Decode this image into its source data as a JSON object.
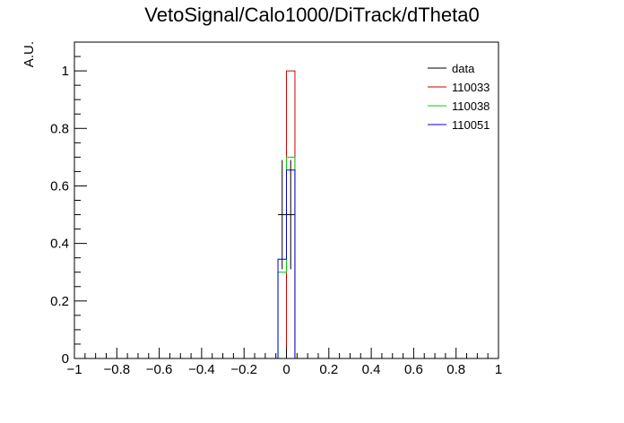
{
  "chart_data": {
    "type": "histogram",
    "title": "VetoSignal/Calo1000/DiTrack/dTheta0",
    "xlabel": "",
    "ylabel": "A.U.",
    "xlim": [
      -1,
      1
    ],
    "ylim": [
      0,
      1.1
    ],
    "grid": false,
    "legend_position": "top-right",
    "x_ticks": [
      {
        "value": -1,
        "label": "−1"
      },
      {
        "value": -0.8,
        "label": "−0.8"
      },
      {
        "value": -0.6,
        "label": "−0.6"
      },
      {
        "value": -0.4,
        "label": "−0.4"
      },
      {
        "value": -0.2,
        "label": "−0.2"
      },
      {
        "value": 0,
        "label": "0"
      },
      {
        "value": 0.2,
        "label": "0.2"
      },
      {
        "value": 0.4,
        "label": "0.4"
      },
      {
        "value": 0.6,
        "label": "0.6"
      },
      {
        "value": 0.8,
        "label": "0.8"
      },
      {
        "value": 1,
        "label": "1"
      }
    ],
    "y_ticks": [
      {
        "value": 0,
        "label": "0"
      },
      {
        "value": 0.2,
        "label": "0.2"
      },
      {
        "value": 0.4,
        "label": "0.4"
      },
      {
        "value": 0.6,
        "label": "0.6"
      },
      {
        "value": 0.8,
        "label": "0.8"
      },
      {
        "value": 1,
        "label": "1"
      }
    ],
    "bin_edges": [
      -0.04,
      0.0,
      0.04
    ],
    "series": [
      {
        "name": "data",
        "kind": "points",
        "color": "#000000",
        "points": [
          {
            "x": -0.02,
            "y": 0.5,
            "xerr": 0.02,
            "ylow": 0.31,
            "yhigh": 0.69
          },
          {
            "x": 0.02,
            "y": 0.5,
            "xerr": 0.02,
            "ylow": 0.31,
            "yhigh": 0.69
          }
        ]
      },
      {
        "name": "110033",
        "kind": "step",
        "color": "#cc0000",
        "values": [
          0.0,
          1.0
        ]
      },
      {
        "name": "110038",
        "kind": "step",
        "color": "#00cc00",
        "values": [
          0.3,
          0.7
        ]
      },
      {
        "name": "110051",
        "kind": "step",
        "color": "#0000cc",
        "values": [
          0.345,
          0.655
        ]
      }
    ]
  }
}
